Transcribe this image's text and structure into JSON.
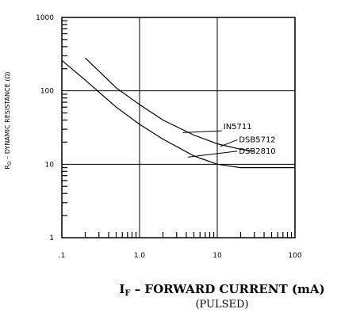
{
  "chart_data": {
    "type": "line",
    "xscale": "log",
    "yscale": "log",
    "xlim": [
      0.1,
      100
    ],
    "ylim": [
      1,
      1000
    ],
    "grid": true,
    "xticks": [
      {
        "value": 0.1,
        "label": ".1"
      },
      {
        "value": 1,
        "label": "1.0"
      },
      {
        "value": 10,
        "label": "10"
      },
      {
        "value": 100,
        "label": "100"
      }
    ],
    "yticks": [
      {
        "value": 1,
        "label": "1"
      },
      {
        "value": 10,
        "label": "10"
      },
      {
        "value": 100,
        "label": "100"
      },
      {
        "value": 1000,
        "label": "1000"
      }
    ],
    "ylabel_main": "R",
    "ylabel_sub": "D",
    "ylabel_rest": " – DYNAMIC RESISTANCE (Ω)",
    "xlabel_main": "I",
    "xlabel_sub": "F",
    "xlabel_rest": " – FORWARD CURRENT (mA)",
    "xlabel_note": "(PULSED)",
    "series": [
      {
        "name": "IN5711",
        "x": [
          0.2,
          0.5,
          1,
          2,
          5,
          10,
          20,
          30
        ],
        "y": [
          280,
          110,
          65,
          40,
          25,
          19,
          16,
          15
        ]
      },
      {
        "name": "DSB5712 / DSB2810",
        "x": [
          0.1,
          0.2,
          0.5,
          1,
          2,
          5,
          10,
          20,
          50,
          100
        ],
        "y": [
          260,
          140,
          60,
          35,
          22,
          13,
          10,
          9,
          9,
          9
        ]
      }
    ],
    "annotations": [
      {
        "text": "IN5711",
        "x": 12,
        "y": 30
      },
      {
        "text": "DSB5712",
        "x": 19,
        "y": 20
      },
      {
        "text": "DSB2810",
        "x": 19,
        "y": 14
      }
    ]
  }
}
